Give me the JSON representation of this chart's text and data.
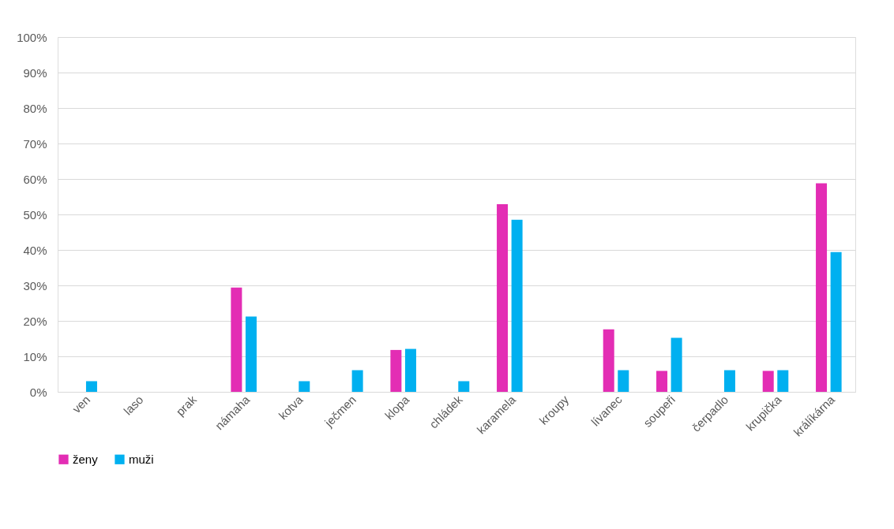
{
  "chart_data": {
    "type": "bar",
    "categories": [
      "ven",
      "laso",
      "prak",
      "námaha",
      "kotva",
      "ječmen",
      "klopa",
      "chládek",
      "karamela",
      "kroupy",
      "lívanec",
      "soupeři",
      "čerpadlo",
      "krupička",
      "králíkárna"
    ],
    "series": [
      {
        "name": "ženy",
        "color": "#e32db4",
        "values": [
          0,
          0,
          0,
          29.4,
          0,
          0,
          11.8,
          0,
          52.9,
          0,
          17.6,
          5.9,
          0,
          5.9,
          58.8
        ]
      },
      {
        "name": "muži",
        "color": "#00b0f0",
        "values": [
          3.0,
          0,
          0,
          21.2,
          3.0,
          6.1,
          12.1,
          3.0,
          48.5,
          0,
          6.1,
          15.2,
          6.1,
          6.1,
          39.4
        ]
      }
    ],
    "ylim": [
      0,
      100
    ],
    "yticks": [
      {
        "value": 0,
        "label": "0%"
      },
      {
        "value": 10,
        "label": "10%"
      },
      {
        "value": 20,
        "label": "20%"
      },
      {
        "value": 30,
        "label": "30%"
      },
      {
        "value": 40,
        "label": "40%"
      },
      {
        "value": 50,
        "label": "50%"
      },
      {
        "value": 60,
        "label": "60%"
      },
      {
        "value": 70,
        "label": "70%"
      },
      {
        "value": 80,
        "label": "80%"
      },
      {
        "value": 90,
        "label": "90%"
      },
      {
        "value": 100,
        "label": "100%"
      }
    ],
    "grid": "y",
    "legend": "bottom"
  }
}
